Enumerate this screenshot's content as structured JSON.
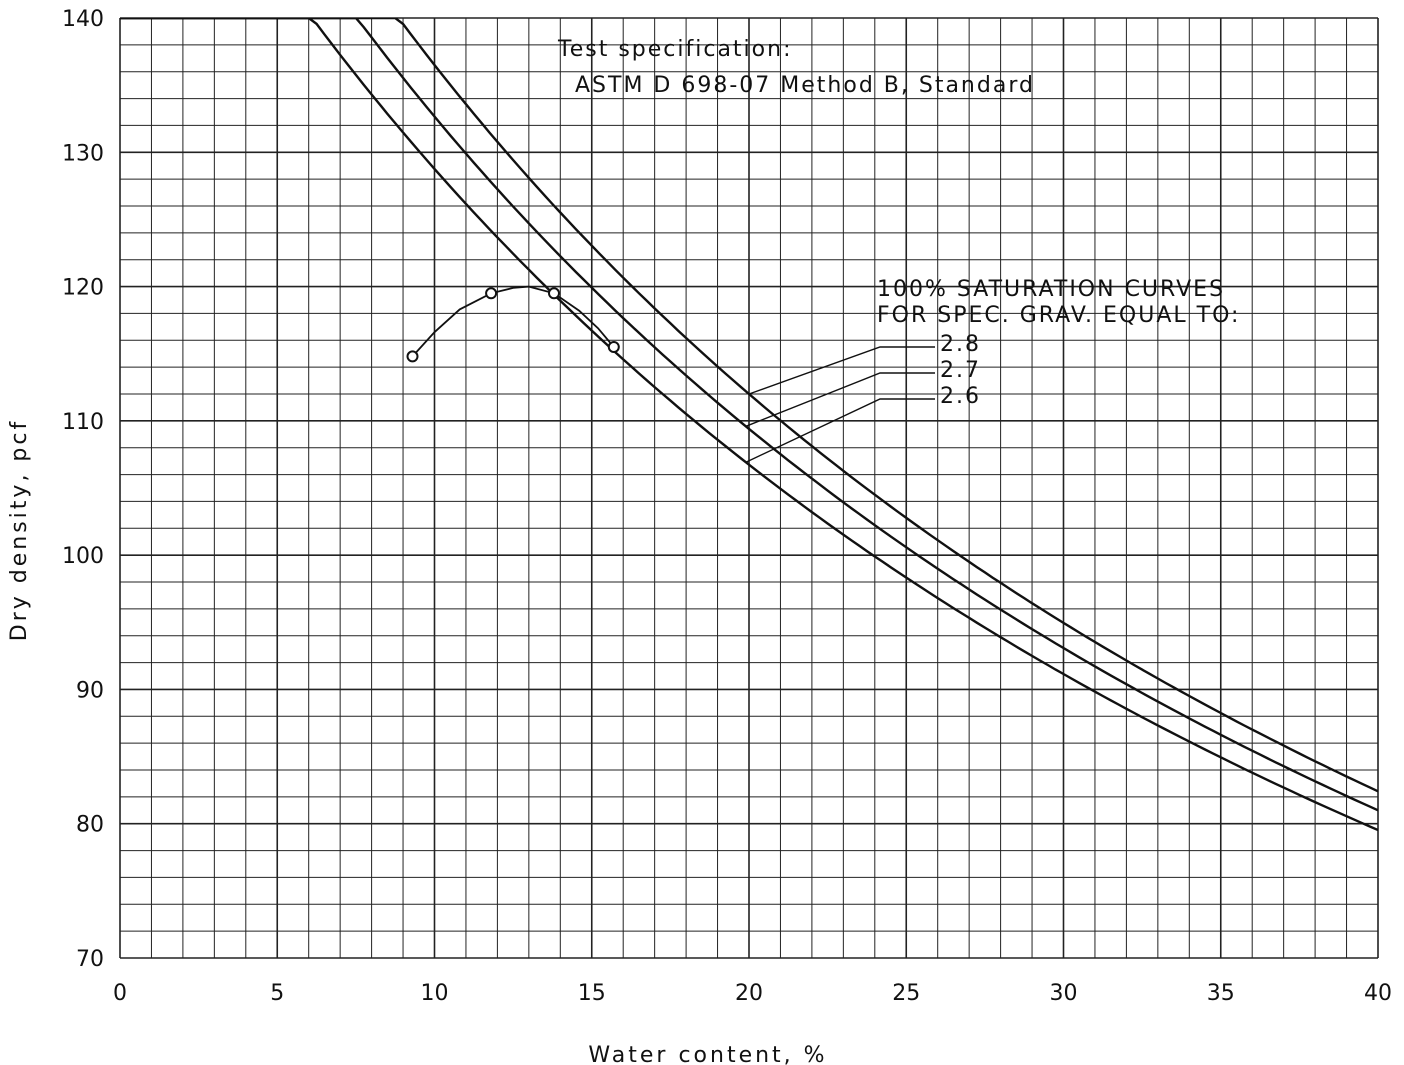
{
  "chart_data": {
    "type": "line",
    "title": "",
    "xlabel": "Water content, %",
    "ylabel": "Dry density, pcf",
    "xlim": [
      0,
      40
    ],
    "ylim": [
      70,
      140
    ],
    "x_ticks": [
      "0",
      "5",
      "10",
      "15",
      "20",
      "25",
      "30",
      "35",
      "40"
    ],
    "y_ticks": [
      "70",
      "80",
      "90",
      "100",
      "110",
      "120",
      "130",
      "140"
    ],
    "grid": true,
    "annotations": {
      "spec_line1": "Test specification:",
      "spec_line2": "ASTM D 698-07 Method B, Standard",
      "sat_title1": "100% SATURATION CURVES",
      "sat_title2": "FOR SPEC. GRAV. EQUAL TO:"
    },
    "saturation_curves": [
      {
        "label": "2.8",
        "specific_gravity": 2.8
      },
      {
        "label": "2.7",
        "specific_gravity": 2.7
      },
      {
        "label": "2.6",
        "specific_gravity": 2.6
      }
    ],
    "compaction_points": {
      "x": [
        9.3,
        11.8,
        13.8,
        15.7
      ],
      "y": [
        114.8,
        119.5,
        119.5,
        115.5
      ]
    },
    "compaction_curve": {
      "x": [
        9.3,
        10.0,
        10.8,
        11.8,
        12.5,
        13.0,
        13.8,
        14.6,
        15.2,
        15.7
      ],
      "y": [
        114.8,
        116.6,
        118.3,
        119.5,
        119.9,
        120.0,
        119.5,
        118.2,
        116.9,
        115.5
      ]
    }
  }
}
